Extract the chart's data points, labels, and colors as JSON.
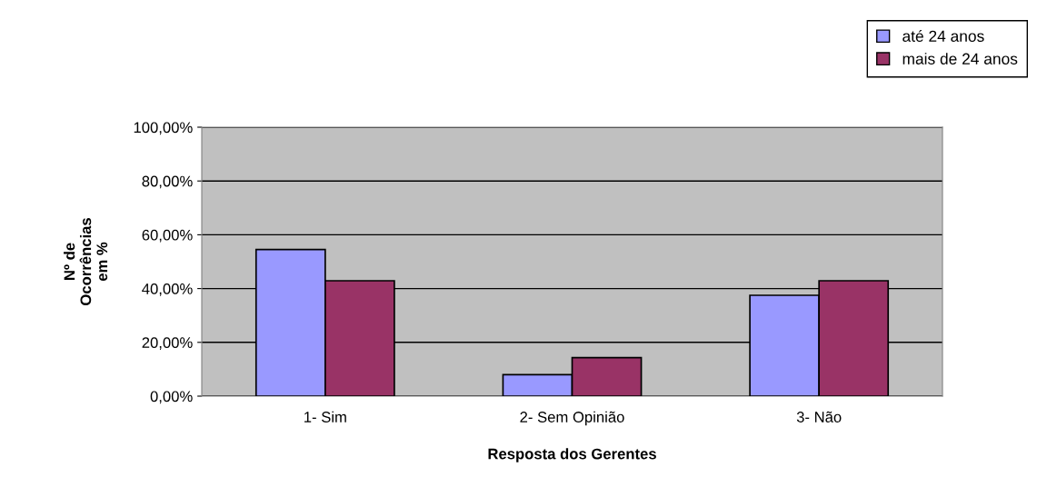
{
  "chart_data": {
    "type": "bar",
    "categories": [
      "1- Sim",
      "2- Sem Opinião",
      "3- Não"
    ],
    "series": [
      {
        "name": "até 24 anos",
        "color": "#9999ff",
        "values": [
          54.5,
          8.0,
          37.5
        ]
      },
      {
        "name": "mais de 24 anos",
        "color": "#993366",
        "values": [
          42.9,
          14.3,
          42.9
        ]
      }
    ],
    "ylim": [
      0,
      100
    ],
    "yticks": [
      {
        "value": 0,
        "label": "0,00%"
      },
      {
        "value": 20,
        "label": "20,00%"
      },
      {
        "value": 40,
        "label": "40,00%"
      },
      {
        "value": 60,
        "label": "60,00%"
      },
      {
        "value": 80,
        "label": "80,00%"
      },
      {
        "value": 100,
        "label": "100,00%"
      }
    ],
    "xlabel": "Resposta dos Gerentes",
    "ylabel": "Nº de\nOcorrências\nem %",
    "grid": "y",
    "legend": "top right"
  }
}
